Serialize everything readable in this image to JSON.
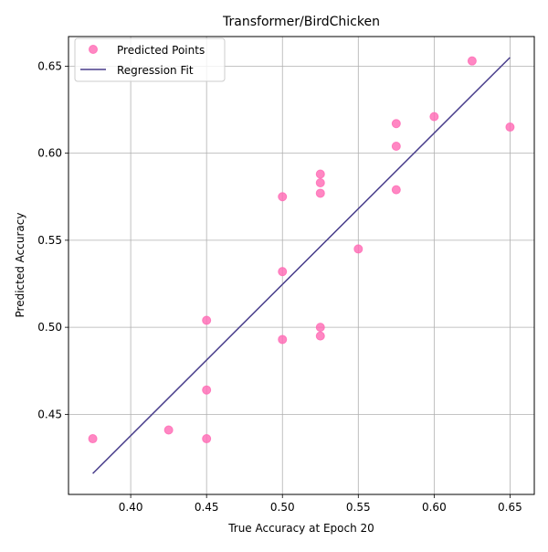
{
  "chart_data": {
    "type": "scatter",
    "title": "Transformer/BirdChicken",
    "xlabel": "True Accuracy at Epoch 20",
    "ylabel": "Predicted Accuracy",
    "xlim": [
      0.359,
      0.666
    ],
    "ylim": [
      0.404,
      0.667
    ],
    "x_ticks": [
      "0.40",
      "0.45",
      "0.50",
      "0.55",
      "0.60",
      "0.65"
    ],
    "y_ticks": [
      "0.45",
      "0.50",
      "0.55",
      "0.60",
      "0.65"
    ],
    "grid": true,
    "legend_position": "top-left",
    "series": [
      {
        "name": "Predicted Points",
        "kind": "scatter",
        "color": "#ff69b4",
        "points": [
          {
            "x": 0.375,
            "y": 0.436
          },
          {
            "x": 0.425,
            "y": 0.441
          },
          {
            "x": 0.45,
            "y": 0.436
          },
          {
            "x": 0.45,
            "y": 0.464
          },
          {
            "x": 0.45,
            "y": 0.504
          },
          {
            "x": 0.5,
            "y": 0.575
          },
          {
            "x": 0.5,
            "y": 0.532
          },
          {
            "x": 0.5,
            "y": 0.493
          },
          {
            "x": 0.525,
            "y": 0.588
          },
          {
            "x": 0.525,
            "y": 0.583
          },
          {
            "x": 0.525,
            "y": 0.577
          },
          {
            "x": 0.525,
            "y": 0.5
          },
          {
            "x": 0.525,
            "y": 0.495
          },
          {
            "x": 0.55,
            "y": 0.545
          },
          {
            "x": 0.575,
            "y": 0.617
          },
          {
            "x": 0.575,
            "y": 0.604
          },
          {
            "x": 0.575,
            "y": 0.579
          },
          {
            "x": 0.6,
            "y": 0.621
          },
          {
            "x": 0.625,
            "y": 0.653
          },
          {
            "x": 0.65,
            "y": 0.615
          }
        ]
      },
      {
        "name": "Regression Fit",
        "kind": "line",
        "color": "#483d8b",
        "points": [
          {
            "x": 0.375,
            "y": 0.416
          },
          {
            "x": 0.65,
            "y": 0.655
          }
        ]
      }
    ]
  }
}
